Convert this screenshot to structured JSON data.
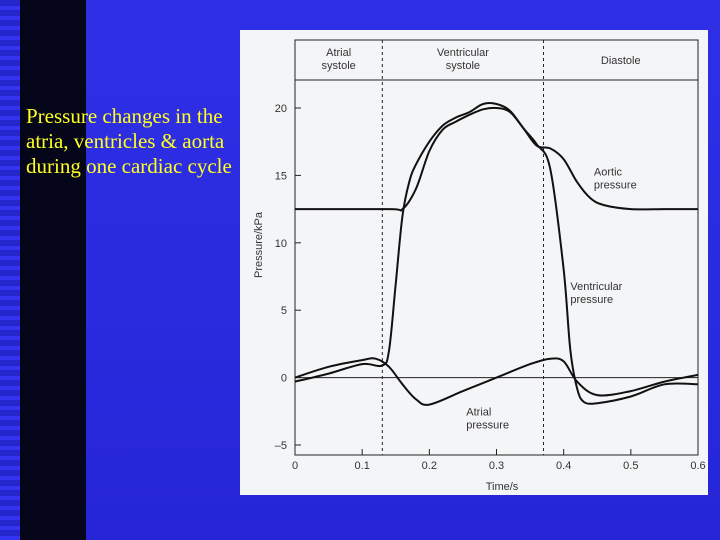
{
  "slide": {
    "title": "Pressure changes in the atria, ventricles & aorta during one cardiac cycle"
  },
  "colors": {
    "background": "#2f2fe6",
    "title": "#ffff22",
    "figure_bg": "#f4f5f7",
    "ink": "#222222"
  },
  "chart_data": {
    "type": "line",
    "xlabel": "Time/s",
    "ylabel": "Pressure/kPa",
    "xlim": [
      0,
      0.6
    ],
    "ylim": [
      -5,
      20
    ],
    "x_ticks": [
      "0",
      "0.1",
      "0.2",
      "0.3",
      "0.4",
      "0.5",
      "0.6"
    ],
    "y_ticks": [
      "–5",
      "0",
      "5",
      "10",
      "15",
      "20"
    ],
    "phases": [
      {
        "label": "Atrial systole",
        "start": 0,
        "end": 0.13
      },
      {
        "label": "Ventricular systole",
        "start": 0.13,
        "end": 0.37
      },
      {
        "label": "Diastole",
        "start": 0.37,
        "end": 0.6
      }
    ],
    "phase_boundaries": [
      0.13,
      0.37
    ],
    "series": [
      {
        "name": "Aortic pressure",
        "x": [
          0,
          0.14,
          0.16,
          0.18,
          0.2,
          0.22,
          0.24,
          0.26,
          0.28,
          0.3,
          0.32,
          0.34,
          0.36,
          0.38,
          0.4,
          0.42,
          0.44,
          0.46,
          0.5,
          0.55,
          0.6
        ],
        "y": [
          12.5,
          12.5,
          12.5,
          14,
          16.8,
          18.4,
          19,
          19.5,
          19.9,
          20,
          19.7,
          18.5,
          17.2,
          17,
          16.2,
          14.5,
          13.3,
          12.8,
          12.5,
          12.5,
          12.5
        ]
      },
      {
        "name": "Ventricular pressure",
        "x": [
          0,
          0.05,
          0.1,
          0.13,
          0.14,
          0.15,
          0.16,
          0.17,
          0.18,
          0.2,
          0.22,
          0.24,
          0.26,
          0.28,
          0.3,
          0.32,
          0.34,
          0.36,
          0.38,
          0.4,
          0.41,
          0.42,
          0.43,
          0.45,
          0.5,
          0.55,
          0.6
        ],
        "y": [
          -0.3,
          0.3,
          1,
          0.9,
          2,
          7,
          12,
          14.5,
          15.8,
          17.5,
          18.7,
          19.3,
          19.7,
          20.3,
          20.3,
          19.8,
          18.5,
          17.3,
          15.5,
          8,
          2,
          -0.8,
          -1.8,
          -1.9,
          -1.4,
          -0.5,
          -0.5
        ]
      },
      {
        "name": "Atrial pressure",
        "x": [
          0,
          0.05,
          0.1,
          0.12,
          0.14,
          0.16,
          0.18,
          0.2,
          0.25,
          0.3,
          0.35,
          0.38,
          0.4,
          0.42,
          0.45,
          0.5,
          0.55,
          0.6
        ],
        "y": [
          0,
          0.8,
          1.3,
          1.4,
          0.8,
          -0.5,
          -1.6,
          -2,
          -1,
          0,
          1,
          1.4,
          1.2,
          -0.3,
          -1.3,
          -1,
          -0.3,
          0.2
        ]
      }
    ],
    "annotations": [
      {
        "text": "Aortic pressure",
        "x": 0.445,
        "y": 15
      },
      {
        "text": "Ventricular pressure",
        "x": 0.41,
        "y": 6.5
      },
      {
        "text": "Atrial pressure",
        "x": 0.255,
        "y": -2.8
      }
    ],
    "grid": false
  }
}
